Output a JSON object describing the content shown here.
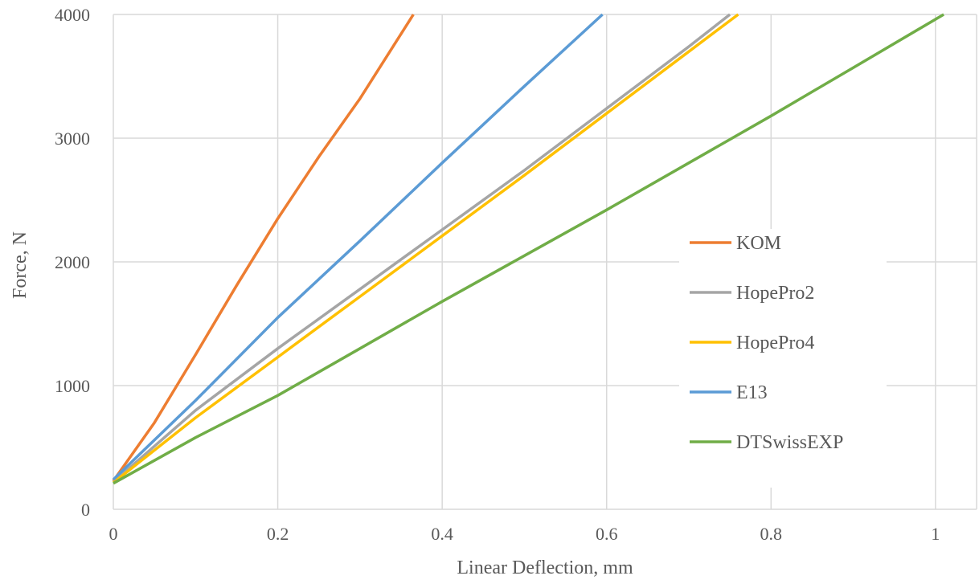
{
  "chart_data": {
    "type": "line",
    "title": "",
    "xlabel": "Linear Deflection, mm",
    "ylabel": "Force, N",
    "xlim": [
      0,
      1.05
    ],
    "ylim": [
      0,
      4000
    ],
    "x_ticks": [
      0,
      0.2,
      0.4,
      0.6,
      0.8,
      1
    ],
    "x_tick_labels": [
      "0",
      "0.2",
      "0.4",
      "0.6",
      "0.8",
      "1"
    ],
    "y_ticks": [
      0,
      1000,
      2000,
      3000,
      4000
    ],
    "y_tick_labels": [
      "0",
      "1000",
      "2000",
      "3000",
      "4000"
    ],
    "grid": true,
    "legend_position": "right",
    "series": [
      {
        "name": "KOM",
        "color": "#ED7D31",
        "points": [
          [
            0,
            230
          ],
          [
            0.05,
            700
          ],
          [
            0.1,
            1250
          ],
          [
            0.15,
            1810
          ],
          [
            0.2,
            2350
          ],
          [
            0.25,
            2850
          ],
          [
            0.3,
            3320
          ],
          [
            0.365,
            4000
          ]
        ]
      },
      {
        "name": "HopePro2",
        "color": "#A5A5A5",
        "points": [
          [
            0,
            220
          ],
          [
            0.1,
            800
          ],
          [
            0.2,
            1300
          ],
          [
            0.3,
            1780
          ],
          [
            0.4,
            2260
          ],
          [
            0.5,
            2740
          ],
          [
            0.6,
            3240
          ],
          [
            0.7,
            3740
          ],
          [
            0.75,
            4000
          ]
        ]
      },
      {
        "name": "HopePro4",
        "color": "#FFC000",
        "points": [
          [
            0,
            215
          ],
          [
            0.1,
            740
          ],
          [
            0.2,
            1230
          ],
          [
            0.3,
            1720
          ],
          [
            0.4,
            2210
          ],
          [
            0.5,
            2700
          ],
          [
            0.6,
            3200
          ],
          [
            0.7,
            3700
          ],
          [
            0.76,
            4000
          ]
        ]
      },
      {
        "name": "E13",
        "color": "#5B9BD5",
        "points": [
          [
            0,
            240
          ],
          [
            0.1,
            880
          ],
          [
            0.2,
            1550
          ],
          [
            0.3,
            2170
          ],
          [
            0.4,
            2800
          ],
          [
            0.5,
            3420
          ],
          [
            0.595,
            4000
          ]
        ]
      },
      {
        "name": "DTSwissEXP",
        "color": "#70AD47",
        "points": [
          [
            0,
            210
          ],
          [
            0.1,
            580
          ],
          [
            0.2,
            920
          ],
          [
            0.3,
            1300
          ],
          [
            0.4,
            1680
          ],
          [
            0.5,
            2050
          ],
          [
            0.6,
            2420
          ],
          [
            0.7,
            2800
          ],
          [
            0.8,
            3180
          ],
          [
            0.9,
            3570
          ],
          [
            1.01,
            4000
          ]
        ]
      }
    ]
  }
}
